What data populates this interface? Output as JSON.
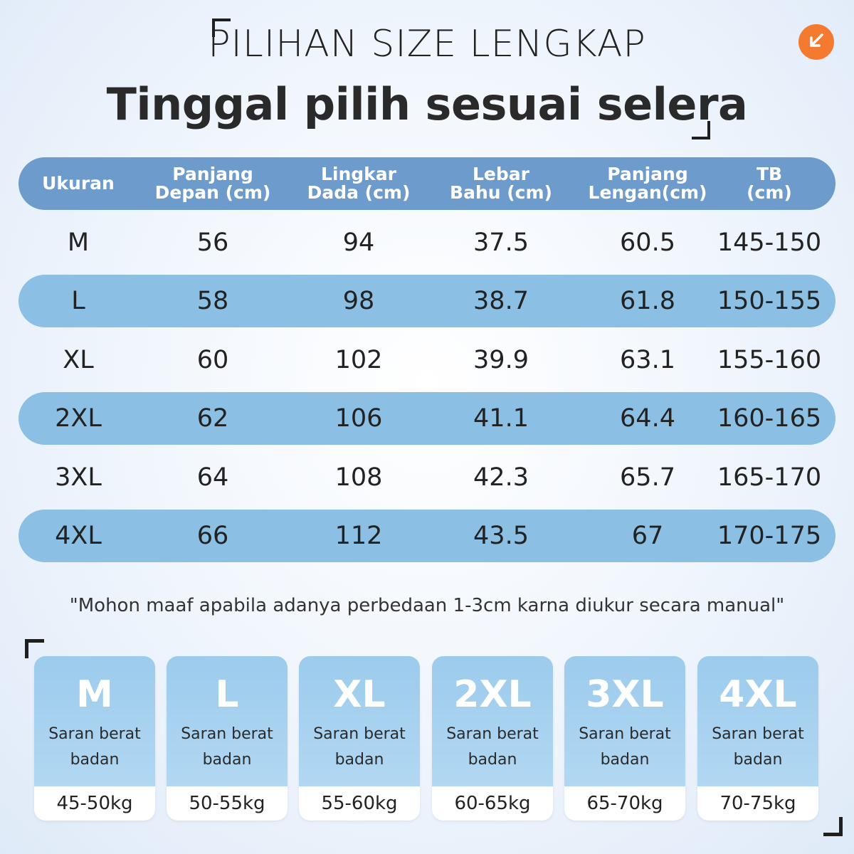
{
  "header": {
    "subtitle": "PILIHAN SIZE LENGKAP",
    "title": "Tinggal pilih sesuai selera",
    "accent_color": "#f37a2e"
  },
  "table": {
    "columns": [
      {
        "line1": "Ukuran",
        "line2": ""
      },
      {
        "line1": "Panjang",
        "line2": "Depan (cm)"
      },
      {
        "line1": "Lingkar",
        "line2": "Dada (cm)"
      },
      {
        "line1": "Lebar",
        "line2": "Bahu (cm)"
      },
      {
        "line1": "Panjang",
        "line2": "Lengan(cm)"
      },
      {
        "line1": "TB",
        "line2": "(cm)"
      }
    ],
    "rows": [
      [
        "M",
        "56",
        "94",
        "37.5",
        "60.5",
        "145-150"
      ],
      [
        "L",
        "58",
        "98",
        "38.7",
        "61.8",
        "150-155"
      ],
      [
        "XL",
        "60",
        "102",
        "39.9",
        "63.1",
        "155-160"
      ],
      [
        "2XL",
        "62",
        "106",
        "41.1",
        "64.4",
        "160-165"
      ],
      [
        "3XL",
        "64",
        "108",
        "42.3",
        "65.7",
        "165-170"
      ],
      [
        "4XL",
        "66",
        "112",
        "43.5",
        "67",
        "170-175"
      ]
    ],
    "header_color": "#6d9bcb",
    "shaded_row_color": "#8bbfe4"
  },
  "note": "\"Mohon maaf apabila adanya perbedaan 1-3cm karna diukur secara manual\"",
  "weight_cards": [
    {
      "size": "M",
      "label1": "Saran berat",
      "label2": "badan",
      "weight": "45-50kg"
    },
    {
      "size": "L",
      "label1": "Saran berat",
      "label2": "badan",
      "weight": "50-55kg"
    },
    {
      "size": "XL",
      "label1": "Saran berat",
      "label2": "badan",
      "weight": "55-60kg"
    },
    {
      "size": "2XL",
      "label1": "Saran berat",
      "label2": "badan",
      "weight": "60-65kg"
    },
    {
      "size": "3XL",
      "label1": "Saran berat",
      "label2": "badan",
      "weight": "65-70kg"
    },
    {
      "size": "4XL",
      "label1": "Saran berat",
      "label2": "badan",
      "weight": "70-75kg"
    }
  ],
  "icons": {
    "arrow": "arrow-down-left-icon"
  }
}
